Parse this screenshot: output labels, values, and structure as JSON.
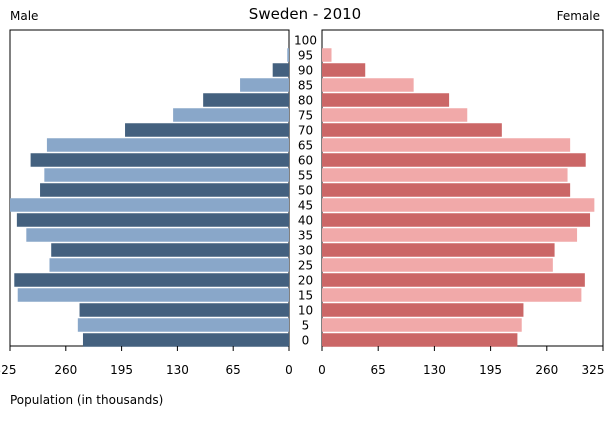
{
  "chart_data": {
    "type": "bar",
    "orientation": "horizontal-population-pyramid",
    "title": "Sweden - 2010",
    "left_label": "Male",
    "right_label": "Female",
    "xlabel": "Population (in thousands)",
    "xlim": [
      0,
      325
    ],
    "x_ticks": [
      0,
      65,
      130,
      195,
      260,
      325
    ],
    "age_groups": [
      "0",
      "5",
      "10",
      "15",
      "20",
      "25",
      "30",
      "35",
      "40",
      "45",
      "50",
      "55",
      "60",
      "65",
      "70",
      "75",
      "80",
      "85",
      "90",
      "95",
      "100"
    ],
    "series": [
      {
        "name": "Male",
        "values": [
          240,
          246,
          244,
          316,
          320,
          279,
          277,
          306,
          317,
          325,
          290,
          285,
          301,
          282,
          191,
          135,
          100,
          57,
          19,
          2,
          0
        ],
        "colors": [
          "#44617f",
          "#89a7c9"
        ]
      },
      {
        "name": "Female",
        "values": [
          226,
          231,
          233,
          300,
          304,
          267,
          269,
          295,
          310,
          315,
          287,
          284,
          305,
          287,
          208,
          168,
          147,
          106,
          50,
          11,
          0
        ],
        "colors": [
          "#cb6767",
          "#f1a9a9"
        ]
      }
    ],
    "grid": false,
    "legend": "none"
  }
}
